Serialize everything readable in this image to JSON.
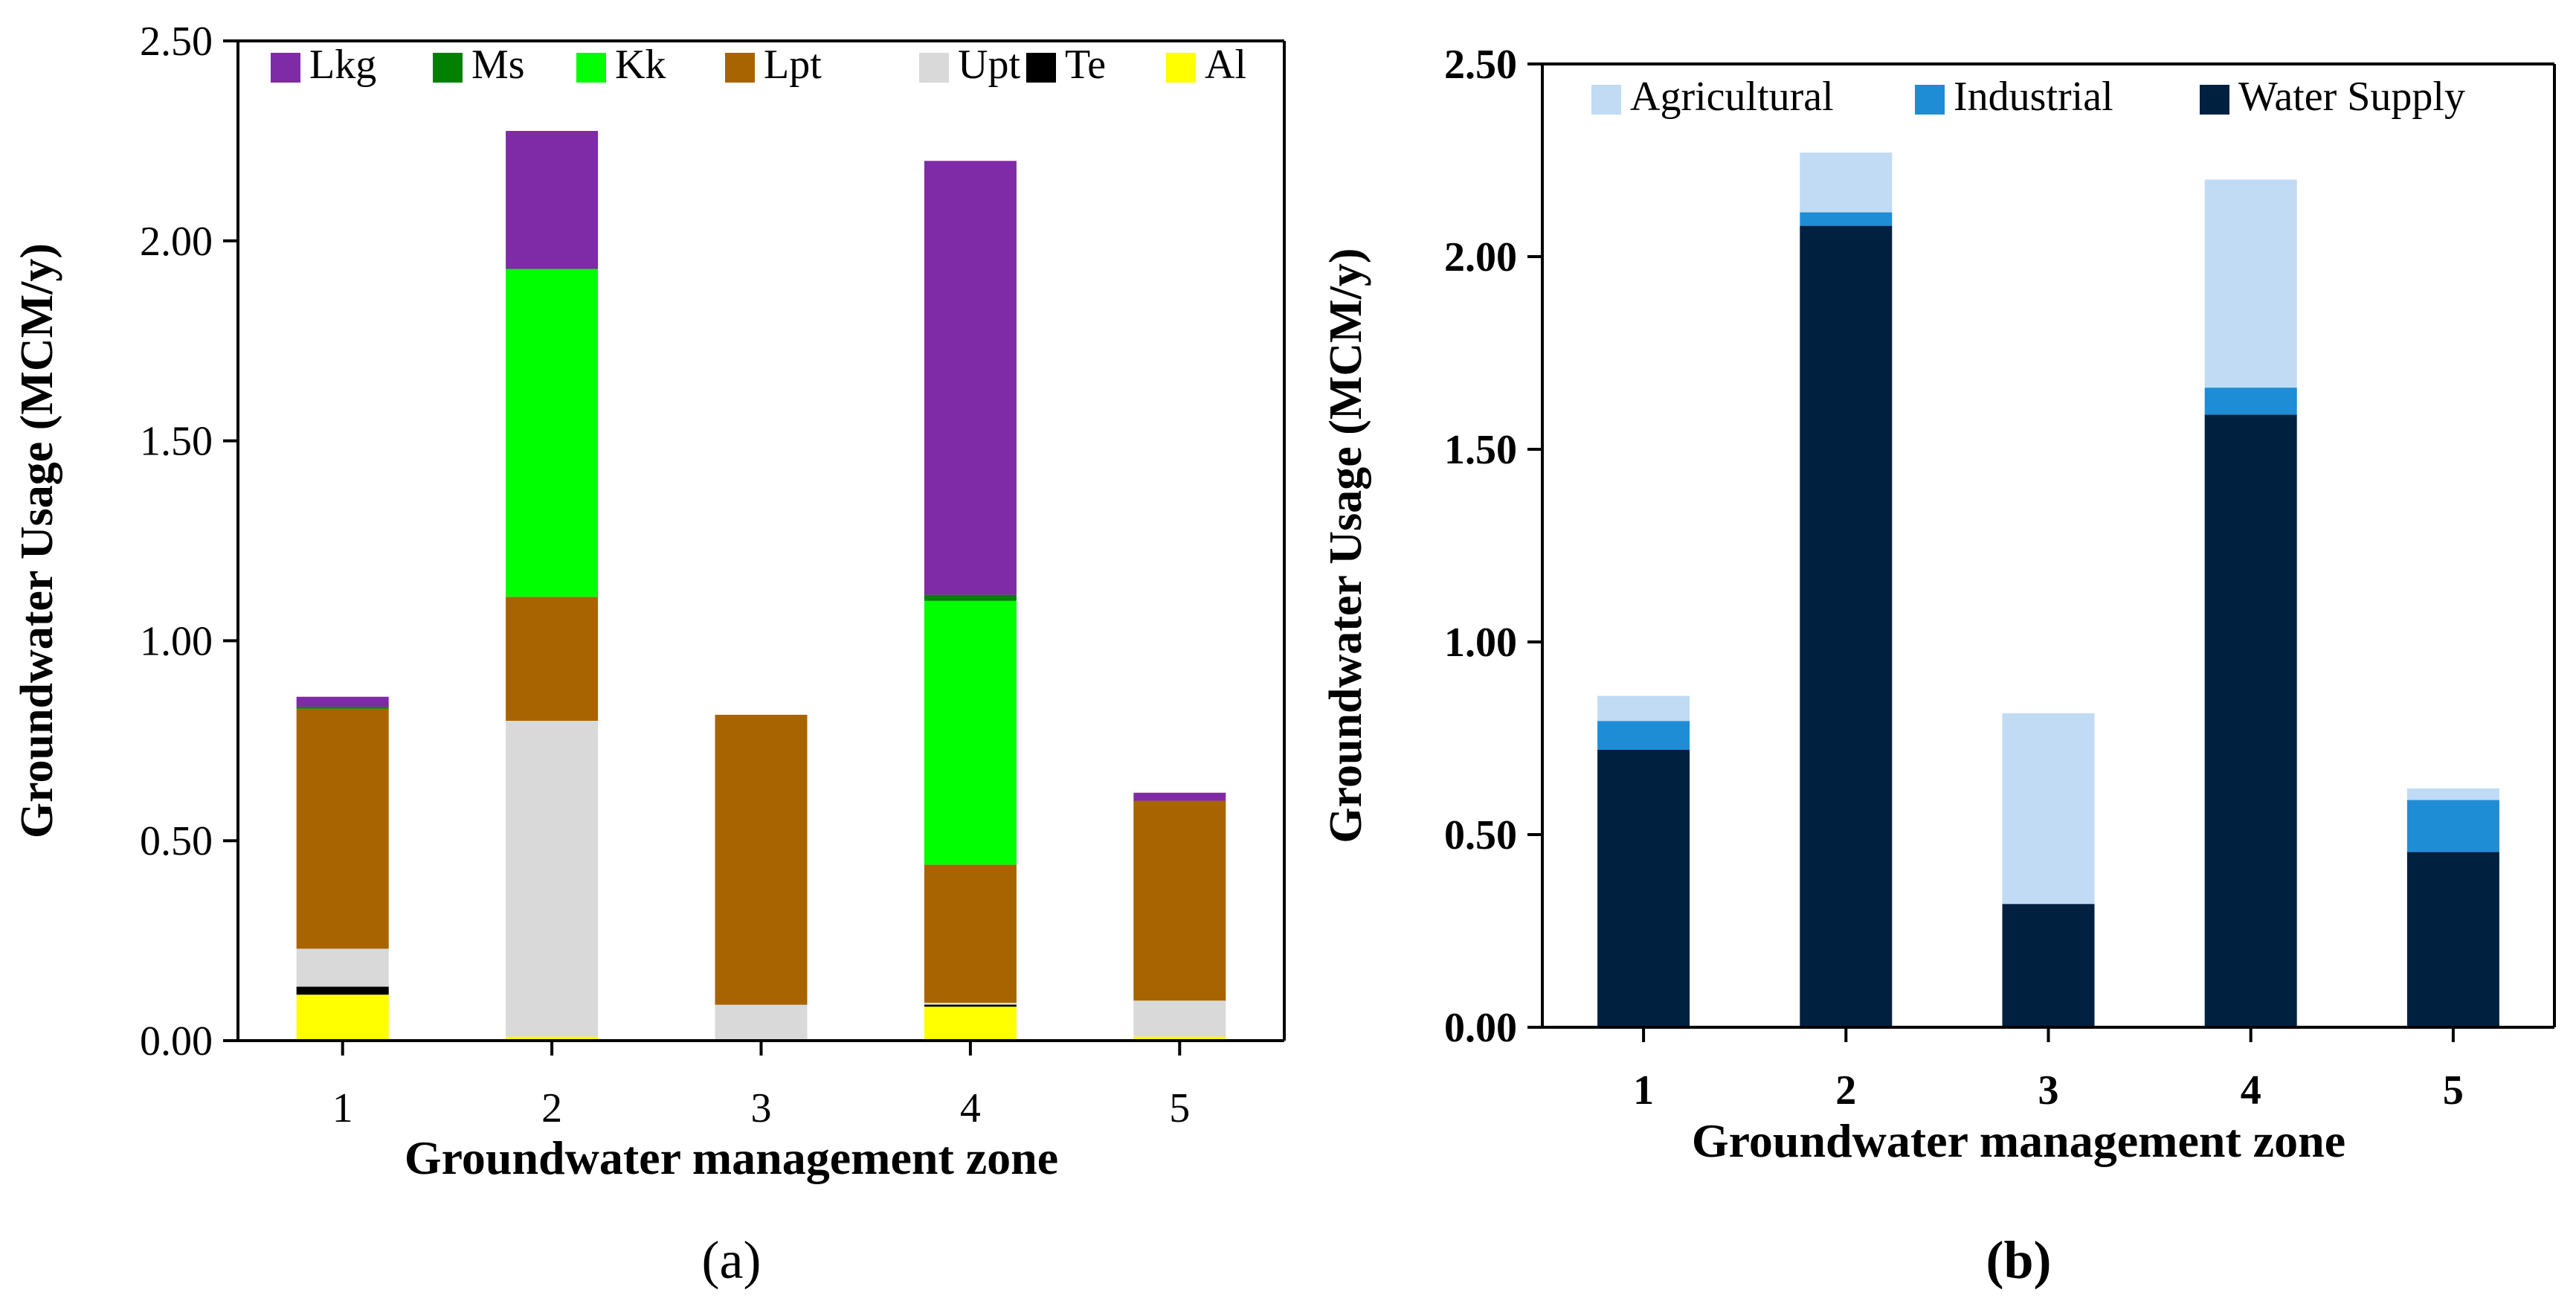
{
  "chart_data": [
    {
      "type": "bar",
      "stacked": true,
      "panel_label": "(a)",
      "xlabel": "Groundwater management zone",
      "ylabel": "Groundwater Usage (MCM/y)",
      "ylim": [
        0,
        2.5
      ],
      "yticks": [
        "0.00",
        "0.50",
        "1.00",
        "1.50",
        "2.00",
        "2.50"
      ],
      "categories": [
        "1",
        "2",
        "3",
        "4",
        "5"
      ],
      "legend_position": "top",
      "series": [
        {
          "name": "Al",
          "color": "#ffff00",
          "values": [
            0.115,
            0.01,
            0.0,
            0.085,
            0.01
          ]
        },
        {
          "name": "Te",
          "color": "#000000",
          "values": [
            0.02,
            0.0,
            0.0,
            0.005,
            0.0
          ]
        },
        {
          "name": "Upt",
          "color": "#d9d9d9",
          "values": [
            0.095,
            0.79,
            0.09,
            0.005,
            0.09
          ]
        },
        {
          "name": "Lpt",
          "color": "#a86400",
          "values": [
            0.6,
            0.31,
            0.725,
            0.345,
            0.5
          ]
        },
        {
          "name": "Kk",
          "color": "#00ff00",
          "values": [
            0.0,
            0.82,
            0.0,
            0.66,
            0.0
          ]
        },
        {
          "name": "Ms",
          "color": "#008000",
          "values": [
            0.005,
            0.0,
            0.0,
            0.015,
            0.0
          ]
        },
        {
          "name": "Lkg",
          "color": "#7f2aa6",
          "values": [
            0.025,
            0.345,
            0.0,
            1.085,
            0.02
          ]
        }
      ],
      "legend_order": [
        "Lkg",
        "Ms",
        "Kk",
        "Lpt",
        "Upt",
        "Te",
        "Al"
      ]
    },
    {
      "type": "bar",
      "stacked": true,
      "panel_label": "(b)",
      "xlabel": "Groundwater management zone",
      "ylabel": "Groundwater Usage (MCM/y)",
      "ylim": [
        0,
        2.5
      ],
      "yticks": [
        "0.00",
        "0.50",
        "1.00",
        "1.50",
        "2.00",
        "2.50"
      ],
      "categories": [
        "1",
        "2",
        "3",
        "4",
        "5"
      ],
      "legend_position": "top",
      "series": [
        {
          "name": "Water Supply",
          "color": "#002040",
          "values": [
            0.72,
            2.08,
            0.32,
            1.59,
            0.455
          ]
        },
        {
          "name": "Industrial",
          "color": "#1f8dd6",
          "values": [
            0.075,
            0.035,
            0.0,
            0.07,
            0.135
          ]
        },
        {
          "name": "Agricultural",
          "color": "#c0dbf3",
          "values": [
            0.065,
            0.155,
            0.495,
            0.54,
            0.03
          ]
        }
      ],
      "legend_order": [
        "Agricultural",
        "Industrial",
        "Water Supply"
      ]
    }
  ]
}
